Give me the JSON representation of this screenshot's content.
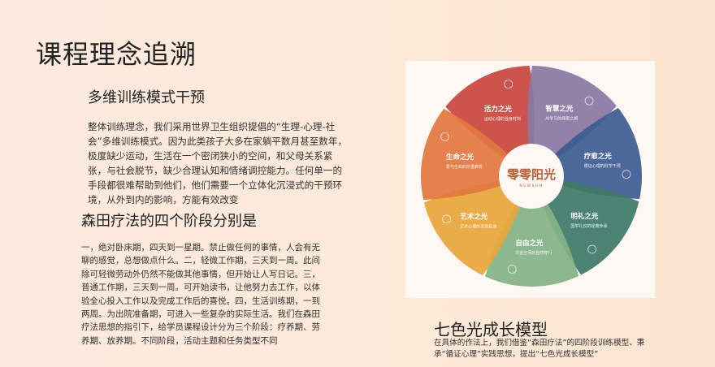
{
  "slide": {
    "title": "课程理念追溯",
    "section1": {
      "heading": "多维训练模式干预",
      "body": "整体训练理念，我们采用世界卫生组织提倡的“生理-心理-社会”多维训练模式。因为此类孩子大多在家躺平数月甚至数年，极度缺少运动，生活在一个密闭狭小的空间，和父母关系紧张，与社会脱节，缺少合理认知和情绪调控能力。任何单一的手段都很难帮助到他们，他们需要一个立体化沉浸式的干预环境，从外到内的影响，方能有效改变"
    },
    "section2": {
      "heading": "森田疗法的四个阶段分别是",
      "body": "一，绝对卧床期，四天到一星期。禁止做任何的事情，人会有无聊的感觉，总想做点什么。二，轻微工作期，三天到一周。此间除可轻微劳动外仍然不能做其他事情，但开始让人写日记。三，普通工作期，三天到一周。可开始读书，让他努力去工作，以体验全心投入工作以及完成工作后的喜悦。四，生活训练期，一到两周。为出院准备期，可进入一些复杂的实际生活。我们在森田疗法思想的指引下，给学员课程设计分为三个阶段：疗养期、劳养期、放养期。不同阶段，活动主题和任务类型不同"
    },
    "section3": {
      "heading": "七色光成长模型",
      "body": "在具体的作法上，我们借鉴“森田疗法”的四阶段训练模型、秉承“循证心理”实践思想，提出“七色光成长模型”"
    },
    "wheel": {
      "logo": "零零阳光",
      "logo_sub": "NEWSUN",
      "logo_color": "#b5643b",
      "petals": [
        {
          "title": "活力之光",
          "subtitle": "运动心理的强身时刻",
          "color": "#c9473e",
          "icon": "running-person-icon"
        },
        {
          "title": "智慧之光",
          "subtitle": "AI学习的探索之旅",
          "color": "#8a79a3",
          "icon": "atom-icon"
        },
        {
          "title": "疗愈之光",
          "subtitle": "循证心理的科学干预",
          "color": "#3e5b92",
          "icon": "head-brain-icon"
        },
        {
          "title": "明礼之光",
          "subtitle": "国学礼仪的经典传承",
          "color": "#3f7a68",
          "icon": "bowing-people-icon"
        },
        {
          "title": "自由之光",
          "subtitle": "共创空间的自然穿行",
          "color": "#84b287",
          "icon": "landscape-icon"
        },
        {
          "title": "艺术之光",
          "subtitle": "艺术心理的灵动启迪",
          "color": "#e8a63a",
          "icon": "palette-icon"
        },
        {
          "title": "生命之光",
          "subtitle": "爱与生命的珍重教育",
          "color": "#e2773f",
          "icon": "heart-leaf-icon"
        }
      ]
    }
  }
}
